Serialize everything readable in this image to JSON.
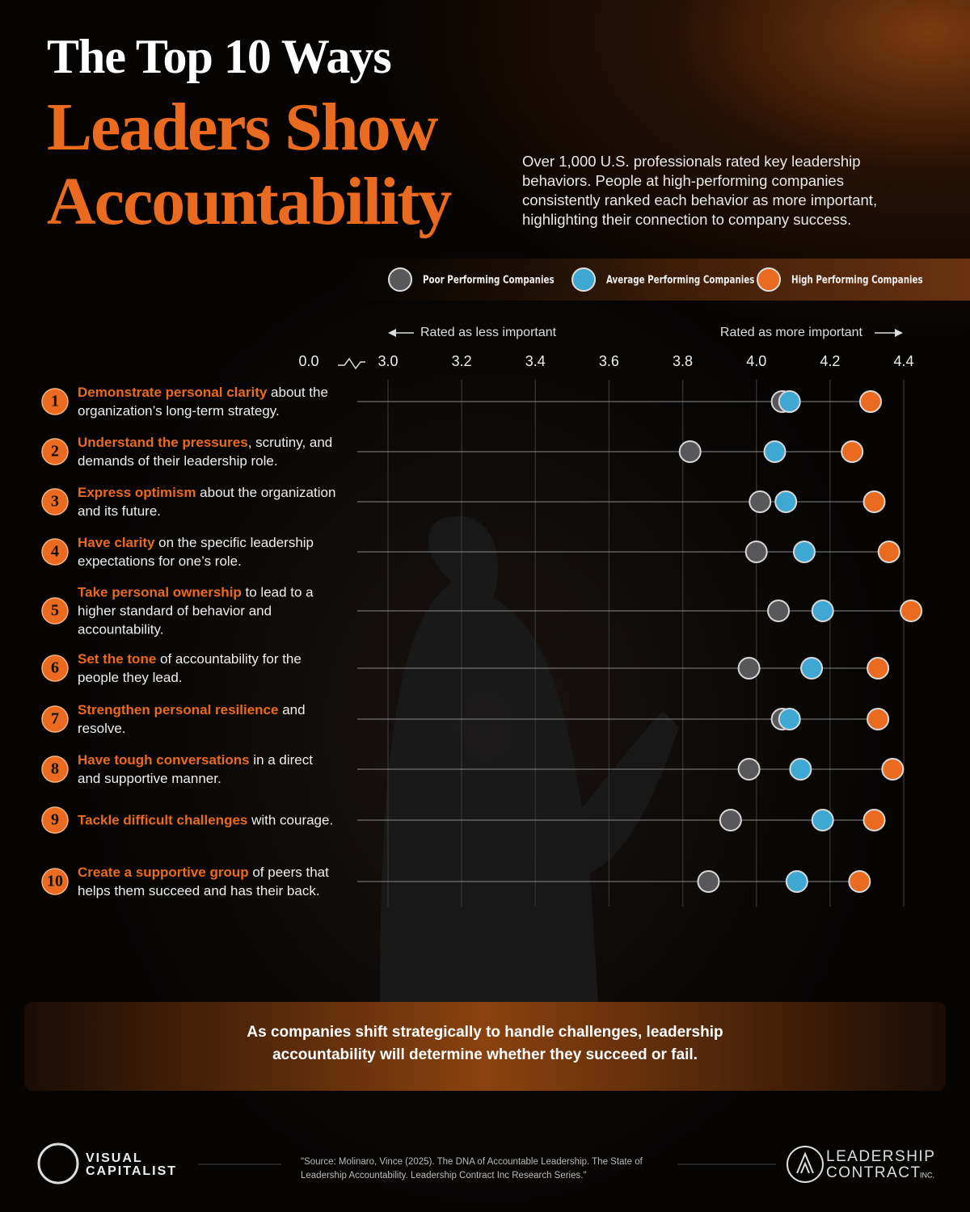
{
  "header": {
    "title": "The Top 10 Ways",
    "title_highlight": "Leaders Show Accountability",
    "subtitle": "Over 1,000 U.S. professionals rated key leadership behaviors. People at high-performing companies consistently ranked each behavior as more important, highlighting their connection to company success."
  },
  "chart_data": {
    "type": "dot",
    "annotations": [
      "Rated as less important",
      "Rated as more important"
    ],
    "ranks": [
      1,
      2,
      3,
      4,
      5,
      6,
      7,
      8,
      9,
      10
    ],
    "categories": [
      {
        "highlight": "Demonstrate personal clarity",
        "text": " about the organization’s long-term strategy."
      },
      {
        "highlight": "Understand the pressures",
        "text": ", scrutiny, and demands of their leadership role."
      },
      {
        "highlight": "Express optimism",
        "text": " about the organization and its future."
      },
      {
        "highlight": "Have clarity",
        "text": " on the specific leadership expectations for one’s role."
      },
      {
        "highlight": "Take personal ownership",
        "text": " to lead to a higher standard of behavior and accountability."
      },
      {
        "highlight": "Set the tone",
        "text": " of accountability for the people they lead."
      },
      {
        "highlight": "Strengthen personal resilience",
        "text": " and resolve."
      },
      {
        "highlight": "Have tough conversations",
        "text": " in a direct and supportive manner."
      },
      {
        "highlight": "Tackle difficult challenges",
        "text": " with courage."
      },
      {
        "highlight": "Create a supportive group",
        "text": " of peers that helps them succeed and has their back."
      }
    ],
    "series": [
      {
        "name": "Poor Performing Companies",
        "color": "#58585a",
        "values": [
          4.07,
          3.82,
          4.01,
          4.0,
          4.06,
          3.98,
          4.07,
          3.98,
          3.93,
          3.87
        ]
      },
      {
        "name": "Average Performing Companies",
        "color": "#3ea8d3",
        "values": [
          4.09,
          4.05,
          4.08,
          4.13,
          4.18,
          4.15,
          4.09,
          4.12,
          4.18,
          4.11
        ]
      },
      {
        "name": "High Performing Companies",
        "color": "#ea6a1f",
        "values": [
          4.31,
          4.26,
          4.32,
          4.36,
          4.42,
          4.33,
          4.33,
          4.37,
          4.32,
          4.28
        ]
      }
    ],
    "xlim": [
      3.0,
      4.4
    ],
    "xticks": [
      {
        "value": 0,
        "label": "0.0"
      },
      {
        "value": 3,
        "label": "3.0"
      },
      3.2,
      3.4,
      3.6,
      3.8,
      {
        "value": 4,
        "label": "4.0"
      },
      4.2,
      4.4
    ],
    "axis_break": true,
    "grid": true
  },
  "callout": "As companies shift strategically to handle challenges, leadership accountability will determine whether they succeed or fail.",
  "footer": {
    "brand_left": [
      "VISUAL",
      "CAPITALIST"
    ],
    "source": "\"Source: Molinaro, Vince (2025). The DNA of Accountable Leadership. The State of Leadership Accountability. Leadership Contract Inc Research Series.\"",
    "brand_right": [
      "LEADERSHIP",
      "CONTRACT",
      "INC."
    ]
  }
}
